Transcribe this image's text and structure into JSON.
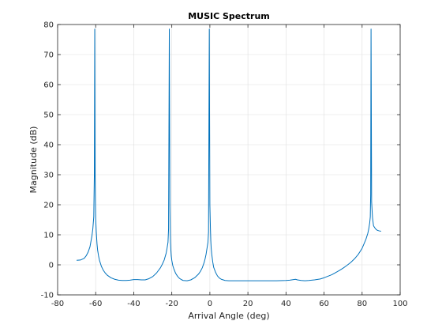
{
  "chart_data": {
    "type": "line",
    "title": "MUSIC Spectrum",
    "xlabel": "Arrival Angle (deg)",
    "ylabel": "Magnitude (dB)",
    "xlim": [
      -80,
      100
    ],
    "ylim": [
      -10,
      80
    ],
    "xticks": [
      -80,
      -60,
      -40,
      -20,
      0,
      20,
      40,
      60,
      80,
      100
    ],
    "yticks": [
      -10,
      0,
      10,
      20,
      30,
      40,
      50,
      60,
      70,
      80
    ],
    "xtick_labels": [
      "-80",
      "-60",
      "-40",
      "-20",
      "0",
      "20",
      "40",
      "60",
      "80",
      "100"
    ],
    "ytick_labels": [
      "-10",
      "0",
      "10",
      "20",
      "30",
      "40",
      "50",
      "60",
      "70",
      "80"
    ],
    "grid": true,
    "series": [
      {
        "color": "#0072BD",
        "x": [
          -70,
          -68,
          -66,
          -65,
          -64,
          -63,
          -62,
          -61.5,
          -61,
          -60.7,
          -60.5,
          -60.3,
          -60,
          -59.7,
          -59.5,
          -59.3,
          -59,
          -58.5,
          -58,
          -57,
          -56,
          -55,
          -54,
          -52,
          -50,
          -48,
          -46,
          -44,
          -42,
          -40,
          -38,
          -36,
          -34,
          -32,
          -30,
          -28,
          -26,
          -25,
          -24,
          -23,
          -22.5,
          -22,
          -21.7,
          -21.5,
          -21.3,
          -21,
          -20.8,
          -20.7,
          -20.5,
          -20.3,
          -20,
          -19.5,
          -19,
          -18,
          -17,
          -16,
          -15,
          -14,
          -12,
          -10,
          -8,
          -6,
          -5,
          -4,
          -3,
          -2.5,
          -2,
          -1.5,
          -1,
          -0.7,
          -0.5,
          -0.3,
          0,
          0.3,
          0.5,
          0.7,
          1,
          1.5,
          2,
          3,
          4,
          5,
          6,
          8,
          10,
          12,
          15,
          20,
          25,
          30,
          35,
          40,
          42,
          44,
          45,
          46,
          48,
          50,
          52,
          55,
          58,
          60,
          62,
          64,
          66,
          68,
          70,
          72,
          74,
          76,
          78,
          80,
          81,
          82,
          83,
          83.5,
          84,
          84.3,
          84.5,
          84.7,
          85,
          85.3,
          85.5,
          86,
          86.5,
          87,
          88,
          89,
          90
        ],
        "y": [
          1.5,
          1.6,
          2.2,
          3.0,
          4.2,
          6.0,
          9.5,
          12.0,
          16.0,
          30.0,
          78.5,
          30.0,
          15.5,
          11.0,
          9.0,
          7.0,
          5.0,
          3.0,
          1.5,
          -0.5,
          -1.8,
          -2.7,
          -3.4,
          -4.3,
          -4.8,
          -5.1,
          -5.2,
          -5.2,
          -5.1,
          -4.9,
          -4.9,
          -5.0,
          -5.0,
          -4.6,
          -3.9,
          -2.7,
          -1.0,
          0.2,
          1.6,
          3.8,
          5.5,
          7.5,
          12.0,
          45.5,
          78.5,
          20.0,
          10.5,
          7.5,
          5.0,
          3.0,
          1.5,
          -0.2,
          -1.2,
          -2.8,
          -3.8,
          -4.5,
          -4.9,
          -5.2,
          -5.3,
          -5.0,
          -4.3,
          -3.1,
          -2.2,
          -1.0,
          0.8,
          2.0,
          3.5,
          5.5,
          7.5,
          11.0,
          45.5,
          78.5,
          20.0,
          12.0,
          8.0,
          5.5,
          3.5,
          1.0,
          -0.8,
          -2.5,
          -3.7,
          -4.4,
          -4.8,
          -5.2,
          -5.3,
          -5.3,
          -5.3,
          -5.3,
          -5.3,
          -5.3,
          -5.3,
          -5.2,
          -5.1,
          -4.9,
          -4.8,
          -5.0,
          -5.2,
          -5.3,
          -5.2,
          -5.0,
          -4.7,
          -4.3,
          -3.8,
          -3.3,
          -2.6,
          -1.9,
          -1.1,
          -0.2,
          0.8,
          2.0,
          3.5,
          5.5,
          7.0,
          8.5,
          10.5,
          12.0,
          14.0,
          16.0,
          23.5,
          78.5,
          21.0,
          17.5,
          15.5,
          13.0,
          12.5,
          12.0,
          11.5,
          11.3,
          11.2
        ]
      }
    ]
  }
}
